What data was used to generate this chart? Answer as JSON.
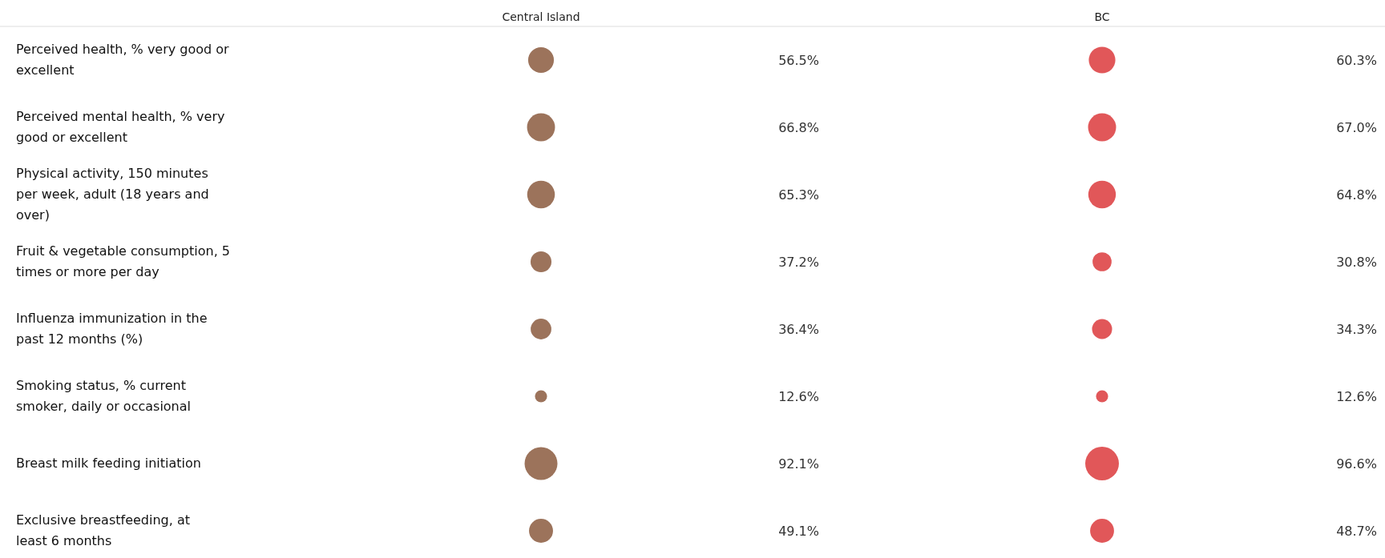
{
  "chart_data": {
    "type": "heatmap",
    "categories": [
      "Central Island",
      "BC"
    ],
    "y_categories": [
      "Perceived health, % very good or excellent",
      "Perceived mental health, % very good or excellent",
      "Physical activity, 150 minutes per week, adult (18 years and over)",
      "Fruit & vegetable consumption, 5 times or more per day",
      "Influenza immunization in the past 12 months (%)",
      "Smoking status, % current smoker, daily or occasional",
      "Breast milk feeding initiation",
      "Exclusive breastfeeding, at least 6 months"
    ],
    "cells": [
      [
        56.5,
        60.3
      ],
      [
        66.8,
        67.0
      ],
      [
        65.3,
        64.8
      ],
      [
        37.2,
        30.8
      ],
      [
        36.4,
        34.3
      ],
      [
        12.6,
        12.6
      ],
      [
        92.1,
        96.6
      ],
      [
        49.1,
        48.7
      ]
    ],
    "cell_labels": [
      [
        "56.5%",
        "60.3%"
      ],
      [
        "66.8%",
        "67.0%"
      ],
      [
        "65.3%",
        "64.8%"
      ],
      [
        "37.2%",
        "30.8%"
      ],
      [
        "36.4%",
        "34.3%"
      ],
      [
        "12.6%",
        "12.6%"
      ],
      [
        "92.1%",
        "96.6%"
      ],
      [
        "49.1%",
        "48.7%"
      ]
    ],
    "colors": [
      "#9c735b",
      "#e15759"
    ]
  }
}
